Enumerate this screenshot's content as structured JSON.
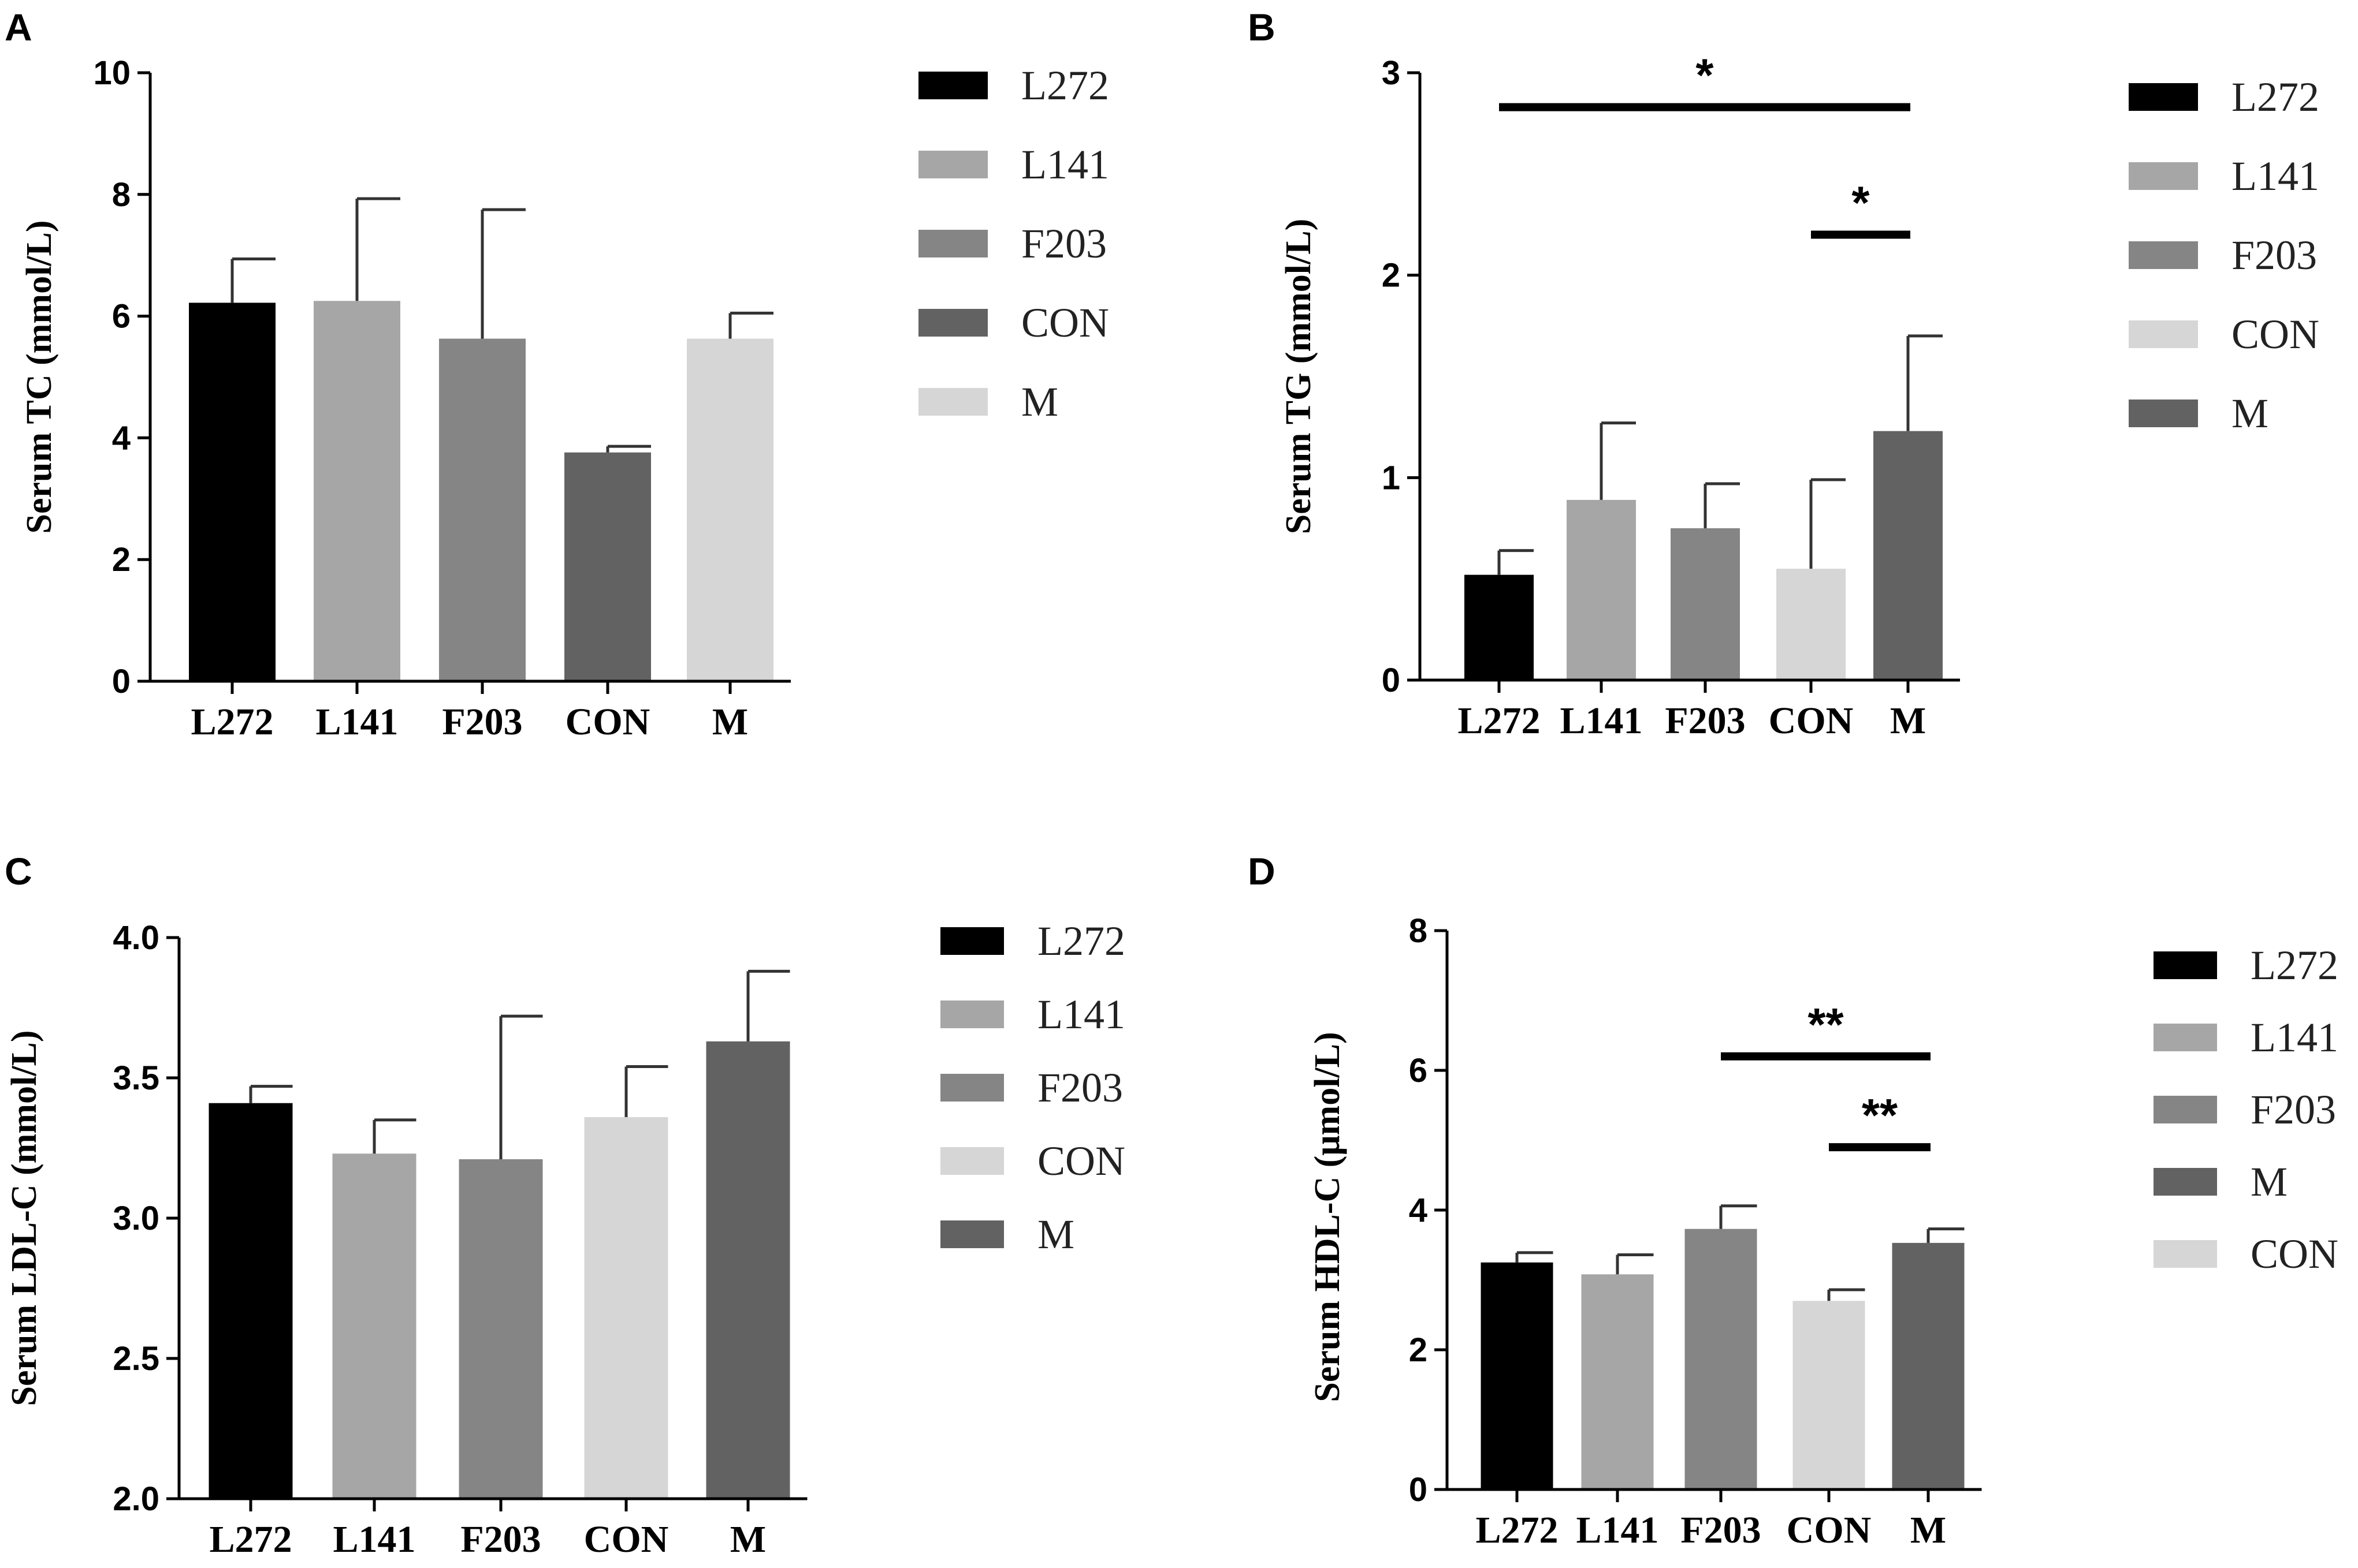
{
  "chart_data": [
    {
      "type": "bar",
      "panel": "A",
      "ylabel": "Serum TC (mmol/L)",
      "ylim": [
        0,
        10
      ],
      "yticks": [
        0,
        2,
        4,
        6,
        8,
        10
      ],
      "ytick_labels": [
        "0",
        "2",
        "4",
        "6",
        "8",
        "10"
      ],
      "categories": [
        "L272",
        "L141",
        "F203",
        "CON",
        "M"
      ],
      "values": [
        6.22,
        6.25,
        5.63,
        3.76,
        5.63
      ],
      "errors": [
        0.72,
        1.68,
        2.12,
        0.1,
        0.42
      ],
      "colors": [
        "#000000",
        "#a6a6a6",
        "#858585",
        "#626262",
        "#d6d6d6"
      ],
      "legend": [
        {
          "label": "L272",
          "color": "#000000"
        },
        {
          "label": "L141",
          "color": "#a6a6a6"
        },
        {
          "label": "F203",
          "color": "#858585"
        },
        {
          "label": "CON",
          "color": "#626262"
        },
        {
          "label": "M",
          "color": "#d6d6d6"
        }
      ],
      "significance": []
    },
    {
      "type": "bar",
      "panel": "B",
      "ylabel": "Serum TG (mmol/L)",
      "ylim": [
        0,
        3
      ],
      "yticks": [
        0,
        1,
        2,
        3
      ],
      "ytick_labels": [
        "0",
        "1",
        "2",
        "3"
      ],
      "categories": [
        "L272",
        "L141",
        "F203",
        "CON",
        "M"
      ],
      "values": [
        0.52,
        0.89,
        0.75,
        0.55,
        1.23
      ],
      "errors": [
        0.12,
        0.38,
        0.22,
        0.44,
        0.47
      ],
      "colors": [
        "#000000",
        "#a6a6a6",
        "#858585",
        "#d6d6d6",
        "#626262"
      ],
      "legend": [
        {
          "label": "L272",
          "color": "#000000"
        },
        {
          "label": "L141",
          "color": "#a6a6a6"
        },
        {
          "label": "F203",
          "color": "#858585"
        },
        {
          "label": "CON",
          "color": "#d6d6d6"
        },
        {
          "label": "M",
          "color": "#626262"
        }
      ],
      "significance": [
        {
          "from": 0,
          "to": 4,
          "y": 2.83,
          "label": "*"
        },
        {
          "from": 3,
          "to": 4,
          "y": 2.2,
          "label": "*"
        }
      ]
    },
    {
      "type": "bar",
      "panel": "C",
      "ylabel": "Serum LDL-C (mmol/L)",
      "ylim": [
        2.0,
        4.0
      ],
      "yticks": [
        2.0,
        2.5,
        3.0,
        3.5,
        4.0
      ],
      "ytick_labels": [
        "2.0",
        "2.5",
        "3.0",
        "3.5",
        "4.0"
      ],
      "categories": [
        "L272",
        "L141",
        "F203",
        "CON",
        "M"
      ],
      "values": [
        3.41,
        3.23,
        3.21,
        3.36,
        3.63
      ],
      "errors": [
        0.06,
        0.12,
        0.51,
        0.18,
        0.25
      ],
      "colors": [
        "#000000",
        "#a6a6a6",
        "#858585",
        "#d6d6d6",
        "#626262"
      ],
      "legend": [
        {
          "label": "L272",
          "color": "#000000"
        },
        {
          "label": "L141",
          "color": "#a6a6a6"
        },
        {
          "label": "F203",
          "color": "#858585"
        },
        {
          "label": "CON",
          "color": "#d6d6d6"
        },
        {
          "label": "M",
          "color": "#626262"
        }
      ],
      "significance": []
    },
    {
      "type": "bar",
      "panel": "D",
      "ylabel": "Serum HDL-C (μmol/L)",
      "ylim": [
        0,
        8
      ],
      "yticks": [
        0,
        2,
        4,
        6,
        8
      ],
      "ytick_labels": [
        "0",
        "2",
        "4",
        "6",
        "8"
      ],
      "categories": [
        "L272",
        "L141",
        "F203",
        "CON",
        "M"
      ],
      "values": [
        3.25,
        3.08,
        3.73,
        2.7,
        3.53
      ],
      "errors": [
        0.14,
        0.28,
        0.33,
        0.16,
        0.2
      ],
      "colors": [
        "#000000",
        "#a6a6a6",
        "#858585",
        "#d6d6d6",
        "#626262"
      ],
      "legend": [
        {
          "label": "L272",
          "color": "#000000"
        },
        {
          "label": "L141",
          "color": "#a6a6a6"
        },
        {
          "label": "F203",
          "color": "#858585"
        },
        {
          "label": "M",
          "color": "#626262"
        },
        {
          "label": "CON",
          "color": "#d6d6d6"
        }
      ],
      "significance": [
        {
          "from": 2,
          "to": 4,
          "y": 6.2,
          "label": "**"
        },
        {
          "from": 3,
          "to": 4,
          "y": 4.9,
          "label": "**"
        }
      ]
    }
  ]
}
